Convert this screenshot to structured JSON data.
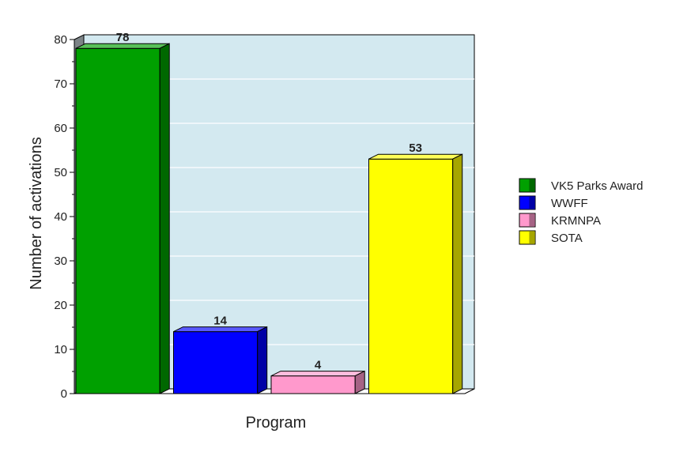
{
  "chart_data": {
    "type": "bar",
    "title": "",
    "xlabel": "Program",
    "ylabel": "Number of activations",
    "ylim": [
      0,
      80
    ],
    "yticks": [
      0,
      10,
      20,
      30,
      40,
      50,
      60,
      70,
      80
    ],
    "grid": true,
    "legend_position": "right",
    "categories": [
      "VK5 Parks Award",
      "WWFF",
      "KRMNPA",
      "SOTA"
    ],
    "values": [
      78,
      14,
      4,
      53
    ],
    "colors": [
      "#00a000",
      "#0000ff",
      "#ff99cc",
      "#ffff00"
    ]
  }
}
